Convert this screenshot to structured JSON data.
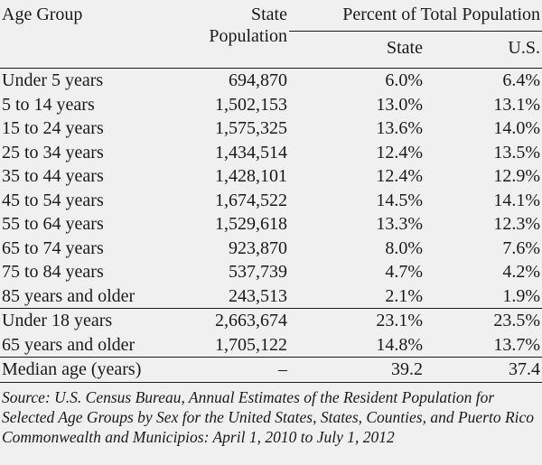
{
  "table": {
    "headers": {
      "age_group": "Age Group",
      "state_population_line1": "State",
      "state_population_line2": "Population",
      "percent_group": "Percent of Total Population",
      "state": "State",
      "us": "U.S."
    },
    "rows": [
      {
        "age": "Under 5 years",
        "pop": "694,870",
        "state": "6.0%",
        "us": "6.4%"
      },
      {
        "age": "5 to 14 years",
        "pop": "1,502,153",
        "state": "13.0%",
        "us": "13.1%"
      },
      {
        "age": "15 to 24 years",
        "pop": "1,575,325",
        "state": "13.6%",
        "us": "14.0%"
      },
      {
        "age": "25 to 34 years",
        "pop": "1,434,514",
        "state": "12.4%",
        "us": "13.5%"
      },
      {
        "age": "35 to 44 years",
        "pop": "1,428,101",
        "state": "12.4%",
        "us": "12.9%"
      },
      {
        "age": "45 to 54 years",
        "pop": "1,674,522",
        "state": "14.5%",
        "us": "14.1%"
      },
      {
        "age": "55 to 64 years",
        "pop": "1,529,618",
        "state": "13.3%",
        "us": "12.3%"
      },
      {
        "age": "65 to 74 years",
        "pop": "923,870",
        "state": "8.0%",
        "us": "7.6%"
      },
      {
        "age": "75 to 84 years",
        "pop": "537,739",
        "state": "4.7%",
        "us": "4.2%"
      },
      {
        "age": "85 years and older",
        "pop": "243,513",
        "state": "2.1%",
        "us": "1.9%"
      }
    ],
    "summary_rows": [
      {
        "age": "Under 18 years",
        "pop": "2,663,674",
        "state": "23.1%",
        "us": "23.5%"
      },
      {
        "age": "65 years and older",
        "pop": "1,705,122",
        "state": "14.8%",
        "us": "13.7%"
      }
    ],
    "median_row": {
      "age": "Median age (years)",
      "pop": "–",
      "state": "39.2",
      "us": "37.4"
    }
  },
  "source": "Source: U.S. Census Bureau, Annual Estimates of the Resident Population for Selected Age Groups by Sex for the United States, States, Counties, and Puerto Rico Commonwealth and Municipios: April 1, 2010 to July 1, 2012"
}
